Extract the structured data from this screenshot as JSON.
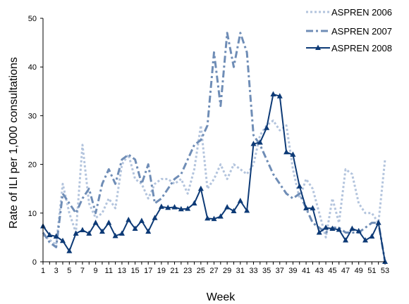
{
  "chart_data": {
    "type": "line",
    "title": "",
    "xlabel": "Week",
    "ylabel": "Rate of ILI per 1,000 consultations",
    "xlim": [
      1,
      53
    ],
    "ylim": [
      0,
      50
    ],
    "yticks": [
      0,
      10,
      20,
      30,
      40,
      50
    ],
    "xticks": [
      1,
      3,
      5,
      7,
      9,
      11,
      13,
      15,
      17,
      19,
      21,
      23,
      25,
      27,
      29,
      31,
      33,
      35,
      37,
      39,
      41,
      43,
      45,
      47,
      49,
      51,
      53
    ],
    "grid": false,
    "legend_position": "top-right",
    "x": [
      1,
      2,
      3,
      4,
      5,
      6,
      7,
      8,
      9,
      10,
      11,
      12,
      13,
      14,
      15,
      16,
      17,
      18,
      19,
      20,
      21,
      22,
      23,
      24,
      25,
      26,
      27,
      28,
      29,
      30,
      31,
      32,
      33,
      34,
      35,
      36,
      37,
      38,
      39,
      40,
      41,
      42,
      43,
      44,
      45,
      46,
      47,
      48,
      49,
      50,
      51,
      52,
      53
    ],
    "series": [
      {
        "name": "ASPREN 2006",
        "color": "#b3c4dd",
        "style": "dotted",
        "values": [
          5.5,
          4.5,
          3.5,
          16,
          10,
          6,
          24,
          12,
          9,
          10,
          13,
          11,
          20,
          22,
          17,
          16,
          13,
          16,
          17,
          17,
          16,
          17,
          14,
          19,
          28,
          15,
          17,
          20,
          17,
          20,
          19,
          18,
          20,
          26,
          28,
          29,
          27,
          28,
          19,
          13,
          17,
          15,
          10,
          5,
          13,
          8,
          19,
          18,
          12,
          10,
          10,
          8,
          21
        ]
      },
      {
        "name": "ASPREN 2007",
        "color": "#6f8db6",
        "style": "dashdot",
        "values": [
          6,
          4,
          3,
          14,
          12,
          10,
          13,
          15,
          10,
          16,
          19,
          16,
          21,
          22,
          21,
          16,
          20,
          12,
          13,
          15,
          17,
          18,
          21,
          24,
          25,
          28,
          43,
          32,
          47,
          40,
          47,
          43,
          26,
          24,
          21,
          18,
          16,
          14,
          13,
          14,
          11,
          8,
          7,
          6,
          7,
          7,
          6,
          6,
          6,
          7,
          8,
          8,
          0
        ]
      },
      {
        "name": "ASPREN 2008",
        "color": "#0d3a76",
        "style": "solid-triangle",
        "values": [
          7.3,
          5.5,
          5.2,
          4.3,
          2.2,
          5.8,
          6.5,
          5.8,
          8,
          6.2,
          8,
          5.3,
          5.8,
          8.6,
          6.8,
          8.4,
          6.2,
          9,
          11.3,
          11.1,
          11.2,
          10.8,
          10.9,
          12,
          15,
          8.9,
          8.8,
          9.3,
          11.2,
          10.4,
          12.5,
          10.5,
          24.2,
          24.5,
          27.5,
          34.4,
          34,
          22.5,
          22,
          15.5,
          11,
          11,
          6,
          7,
          6.8,
          6.6,
          4.4,
          6.8,
          6.3,
          4.4,
          5.2,
          8,
          0
        ]
      }
    ]
  }
}
